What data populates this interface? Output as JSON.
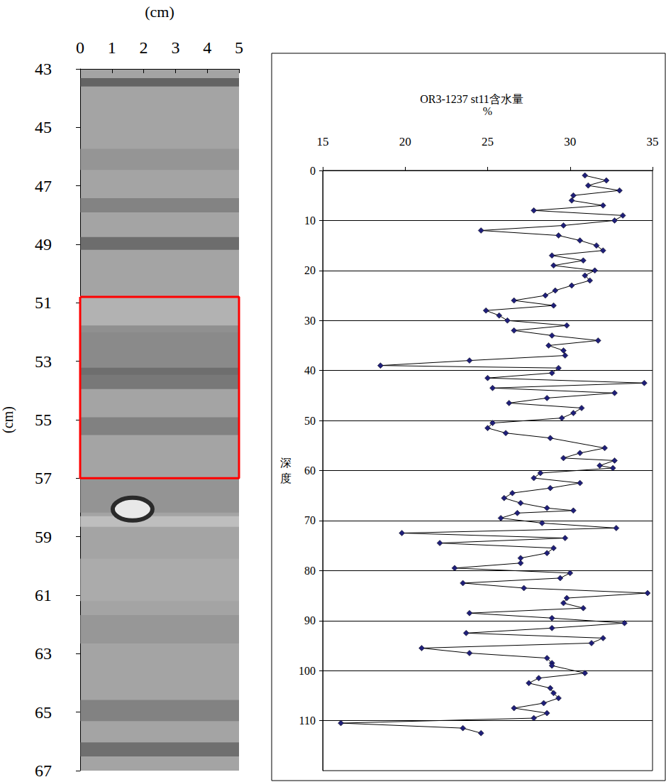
{
  "chart_data": [
    {
      "type": "image",
      "x_label": "(cm)",
      "y_label": "(cm)",
      "xlim": [
        0,
        5
      ],
      "xticks": [
        0,
        1,
        2,
        3,
        4,
        5
      ],
      "ylim": [
        43,
        67
      ],
      "yticks": [
        43,
        45,
        47,
        49,
        51,
        53,
        55,
        57,
        59,
        61,
        63,
        65,
        67
      ],
      "highlight": {
        "x": [
          0,
          5
        ],
        "y": [
          50.8,
          57
        ],
        "color": "#ff0000"
      }
    },
    {
      "type": "line",
      "title": "OR3-1237 st11含水量",
      "x_label": "%",
      "y_label": "深度",
      "xlim": [
        15,
        35
      ],
      "xticks": [
        15,
        20,
        25,
        30,
        35
      ],
      "ylim": [
        0,
        120
      ],
      "yticks": [
        0,
        10,
        20,
        30,
        40,
        50,
        60,
        70,
        80,
        90,
        100,
        110
      ],
      "grid": true,
      "marker": "diamond",
      "series": [
        {
          "color": "#1f1f7a",
          "x": [
            30.9,
            32.2,
            31.1,
            33.0,
            30.2,
            30.1,
            32.0,
            27.8,
            33.2,
            32.7,
            29.6,
            24.6,
            29.3,
            30.6,
            31.6,
            32.0,
            28.9,
            30.8,
            29.0,
            31.5,
            30.9,
            31.2,
            30.1,
            29.1,
            28.5,
            26.6,
            29.0,
            24.9,
            25.7,
            26.2,
            29.8,
            26.6,
            28.9,
            31.7,
            28.7,
            29.6,
            29.7,
            23.9,
            18.5,
            29.3,
            28.9,
            25.0,
            34.5,
            25.3,
            32.7,
            28.6,
            26.3,
            30.7,
            30.2,
            29.5,
            25.3,
            25.0,
            26.1,
            28.8,
            32.1,
            30.6,
            29.6,
            32.7,
            31.8,
            32.6,
            28.2,
            27.8,
            30.6,
            28.8,
            26.5,
            26.0,
            27.0,
            28.6,
            30.2,
            26.8,
            25.8,
            28.3,
            32.8,
            19.8,
            29.7,
            22.1,
            29.0,
            28.6,
            27.0,
            27.0,
            23.0,
            30.0,
            29.4,
            23.5,
            27.2,
            34.7,
            29.8,
            29.6,
            30.8,
            23.9,
            28.9,
            33.3,
            28.9,
            23.7,
            32.0,
            31.3,
            21.0,
            23.9,
            28.6,
            28.9,
            28.9,
            30.9,
            28.1,
            27.5,
            28.8,
            29.0,
            29.3,
            28.4,
            26.6,
            28.6,
            27.8,
            16.1,
            23.5,
            24.6
          ],
          "y": [
            1,
            2,
            3,
            4,
            5,
            6,
            7,
            8,
            9,
            10,
            11,
            12,
            13,
            14,
            15,
            16,
            17,
            18,
            19,
            20,
            21,
            22,
            23,
            24,
            25,
            26,
            27,
            28,
            29,
            30,
            31,
            32,
            33,
            34,
            35,
            36,
            37,
            38,
            39,
            39.5,
            40.5,
            41.5,
            42.5,
            43.5,
            44.5,
            45.5,
            46.5,
            47.5,
            48.5,
            49.5,
            50.5,
            51.5,
            52.5,
            53.5,
            55.5,
            56.5,
            57.5,
            58,
            59,
            59.5,
            60.5,
            61.5,
            62.5,
            63.5,
            64.5,
            65.5,
            66.5,
            67.5,
            68,
            68.5,
            69.5,
            70.5,
            71.5,
            72.5,
            73.5,
            74.5,
            75.5,
            76.5,
            77.5,
            78.5,
            79.5,
            80.5,
            81.5,
            82.5,
            83.5,
            84.5,
            85.5,
            86.5,
            87.5,
            88.5,
            89.5,
            90.5,
            91.5,
            92.5,
            93.5,
            94.5,
            95.5,
            96.5,
            97.5,
            98.5,
            99,
            100.5,
            101.5,
            102.5,
            103.5,
            104.5,
            105.5,
            106.5,
            107.5,
            108.5,
            109.5,
            110.5,
            111.5,
            112.5
          ]
        }
      ]
    }
  ]
}
